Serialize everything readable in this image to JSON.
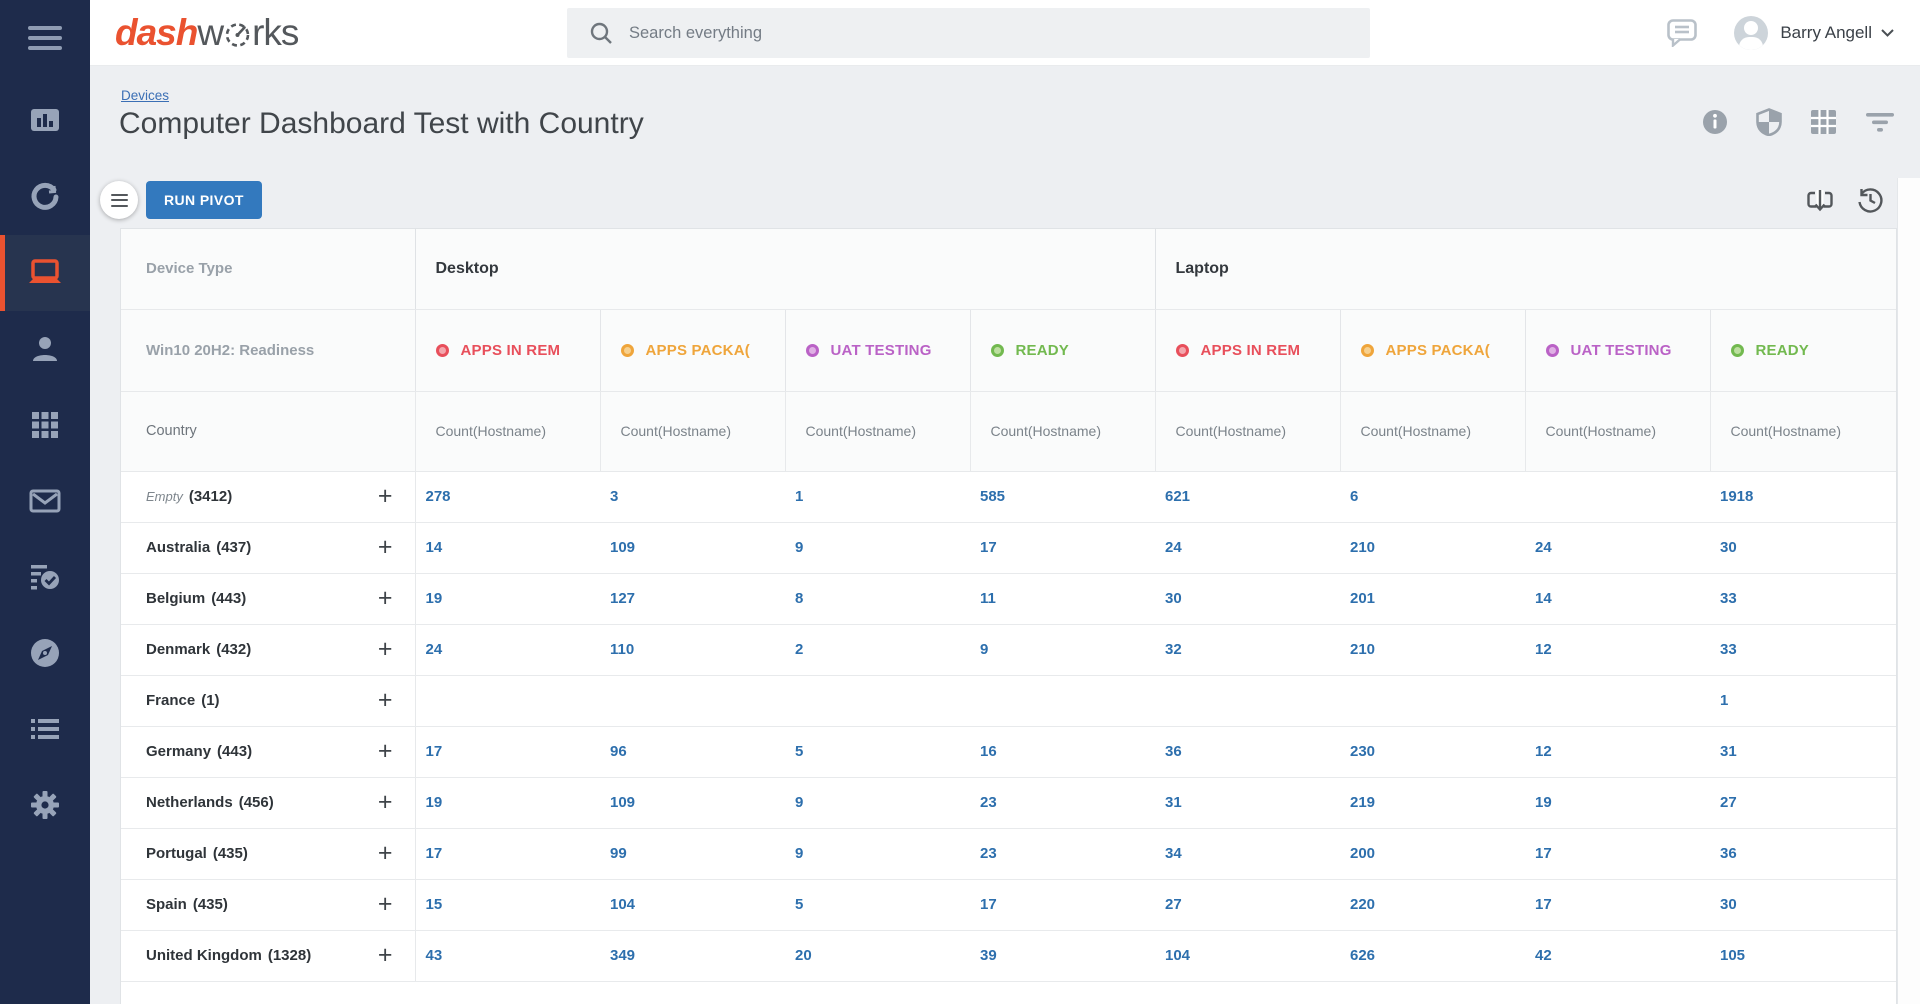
{
  "topbar": {
    "logo_dash": "dash",
    "logo_w": "w",
    "logo_rks": "rks",
    "search_placeholder": "Search everything",
    "user_name": "Barry Angell",
    "icons": [
      "chat-icon",
      "avatar",
      "caret-down-icon"
    ]
  },
  "sidebar": {
    "bg_color": "#1e2b4b",
    "accent_color": "#ea5230",
    "icon_color": "#97a3b8",
    "icons": [
      "menu-icon",
      "bar-chart-icon",
      "sync-icon",
      "laptop-icon",
      "person-icon",
      "grid-icon",
      "mail-icon",
      "checklist-icon",
      "compass-icon",
      "list-icon",
      "gear-icon"
    ],
    "active_item": "devices"
  },
  "page": {
    "breadcrumb": "Devices",
    "title": "Computer Dashboard Test with Country",
    "header_icons": [
      "info-icon",
      "shield-icon",
      "table-icon",
      "filter-icon"
    ]
  },
  "toolbar": {
    "run_pivot_label": "RUN PIVOT",
    "icons": [
      "export-icon",
      "history-icon"
    ]
  },
  "pivot": {
    "corner_label": "Device Type",
    "readiness_label": "Win10 20H2: Readiness",
    "country_label": "Country",
    "measure_label": "Count(Hostname)",
    "groups": [
      "Desktop",
      "Laptop"
    ],
    "statuses": [
      {
        "label": "APPS IN REM",
        "color": "#e84f5b",
        "dot_fill": "#f3a7ad"
      },
      {
        "label": "APPS PACKA(",
        "color": "#efa53b",
        "dot_fill": "#f7d08e"
      },
      {
        "label": "UAT TESTING",
        "color": "#ba62c6",
        "dot_fill": "#dfb0e4"
      },
      {
        "label": "READY",
        "color": "#72b94f",
        "dot_fill": "#bcdf9f"
      }
    ],
    "link_color": "#2d6fad",
    "rows": [
      {
        "label": "Empty",
        "italic": true,
        "count": "3412",
        "values": [
          "278",
          "3",
          "1",
          "585",
          "621",
          "6",
          "",
          "1918"
        ]
      },
      {
        "label": "Australia",
        "count": "437",
        "values": [
          "14",
          "109",
          "9",
          "17",
          "24",
          "210",
          "24",
          "30"
        ]
      },
      {
        "label": "Belgium",
        "count": "443",
        "values": [
          "19",
          "127",
          "8",
          "11",
          "30",
          "201",
          "14",
          "33"
        ]
      },
      {
        "label": "Denmark",
        "count": "432",
        "values": [
          "24",
          "110",
          "2",
          "9",
          "32",
          "210",
          "12",
          "33"
        ]
      },
      {
        "label": "France",
        "count": "1",
        "values": [
          "",
          "",
          "",
          "",
          "",
          "",
          "",
          "1"
        ]
      },
      {
        "label": "Germany",
        "count": "443",
        "values": [
          "17",
          "96",
          "5",
          "16",
          "36",
          "230",
          "12",
          "31"
        ]
      },
      {
        "label": "Netherlands",
        "count": "456",
        "values": [
          "19",
          "109",
          "9",
          "23",
          "31",
          "219",
          "19",
          "27"
        ]
      },
      {
        "label": "Portugal",
        "count": "435",
        "values": [
          "17",
          "99",
          "9",
          "23",
          "34",
          "200",
          "17",
          "36"
        ]
      },
      {
        "label": "Spain",
        "count": "435",
        "values": [
          "15",
          "104",
          "5",
          "17",
          "27",
          "220",
          "17",
          "30"
        ]
      },
      {
        "label": "United Kingdom",
        "count": "1328",
        "values": [
          "43",
          "349",
          "20",
          "39",
          "104",
          "626",
          "42",
          "105"
        ]
      }
    ]
  }
}
